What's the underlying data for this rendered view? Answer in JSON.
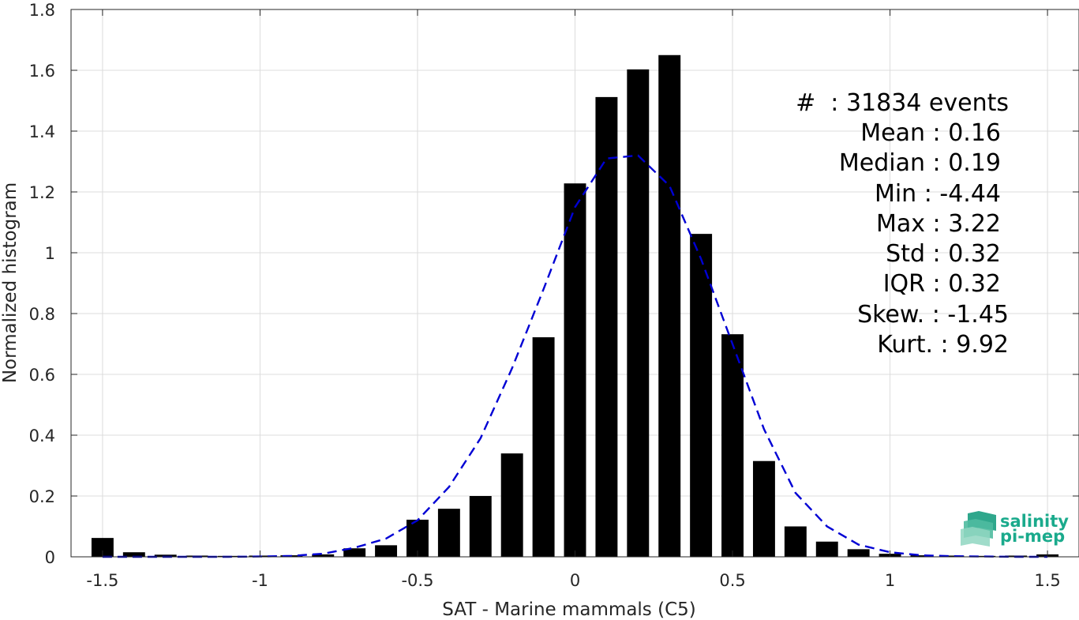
{
  "chart_data": {
    "type": "bar",
    "title": "",
    "xlabel": "SAT - Marine mammals (C5)",
    "ylabel": "Normalized histogram",
    "xlim": [
      -1.6,
      1.6
    ],
    "ylim": [
      0,
      1.8
    ],
    "grid": true,
    "xticks": [
      -1.5,
      -1,
      -0.5,
      0,
      0.5,
      1,
      1.5
    ],
    "xtick_labels": [
      "-1.5",
      "-1",
      "-0.5",
      "0",
      "0.5",
      "1",
      "1.5"
    ],
    "yticks": [
      0,
      0.2,
      0.4,
      0.6,
      0.8,
      1,
      1.2,
      1.4,
      1.6,
      1.8
    ],
    "ytick_labels": [
      "0",
      "0.2",
      "0.4",
      "0.6",
      "0.8",
      "1",
      "1.2",
      "1.4",
      "1.6",
      "1.8"
    ],
    "bar_color": "#000000",
    "bin_width": 0.1,
    "bins": {
      "x": [
        -1.5,
        -1.4,
        -1.3,
        -1.2,
        -1.1,
        -1.0,
        -0.9,
        -0.8,
        -0.7,
        -0.6,
        -0.5,
        -0.4,
        -0.3,
        -0.2,
        -0.1,
        0.0,
        0.1,
        0.2,
        0.3,
        0.4,
        0.5,
        0.6,
        0.7,
        0.8,
        0.9,
        1.0,
        1.1,
        1.2,
        1.3,
        1.4,
        1.5
      ],
      "values": [
        0.062,
        0.015,
        0.007,
        0.004,
        0.003,
        0.004,
        0.005,
        0.008,
        0.028,
        0.038,
        0.122,
        0.158,
        0.2,
        0.34,
        0.722,
        1.228,
        1.512,
        1.603,
        1.65,
        1.062,
        0.732,
        0.315,
        0.1,
        0.05,
        0.025,
        0.01,
        0.005,
        0.004,
        0.003,
        0.004,
        0.008
      ]
    },
    "fit_curve": {
      "style": "dashed",
      "color": "#0000d4",
      "x": [
        -1.5,
        -1.4,
        -1.3,
        -1.2,
        -1.1,
        -1.0,
        -0.9,
        -0.8,
        -0.7,
        -0.6,
        -0.5,
        -0.4,
        -0.3,
        -0.2,
        -0.1,
        0.0,
        0.1,
        0.2,
        0.3,
        0.4,
        0.5,
        0.6,
        0.7,
        0.8,
        0.9,
        1.0,
        1.1,
        1.2,
        1.3,
        1.4,
        1.5
      ],
      "y": [
        0.0,
        0.0,
        0.0,
        0.0,
        0.0,
        0.001,
        0.003,
        0.01,
        0.03,
        0.06,
        0.12,
        0.23,
        0.39,
        0.62,
        0.88,
        1.15,
        1.31,
        1.32,
        1.22,
        0.98,
        0.7,
        0.42,
        0.21,
        0.1,
        0.04,
        0.015,
        0.005,
        0.002,
        0.001,
        0.0,
        0.0
      ]
    }
  },
  "stats": {
    "count": "#  : 31834 events",
    "mean": "Mean : 0.16",
    "median": "Median : 0.19",
    "min": "Min : -4.44",
    "max": "Max : 3.22",
    "std": "Std : 0.32",
    "iqr": "IQR : 0.32",
    "skew": "Skew. : -1.45",
    "kurt": "Kurt. : 9.92"
  },
  "logo": {
    "line1": "salinity",
    "line2": "pi-mep",
    "color": "#1aaa8c"
  }
}
